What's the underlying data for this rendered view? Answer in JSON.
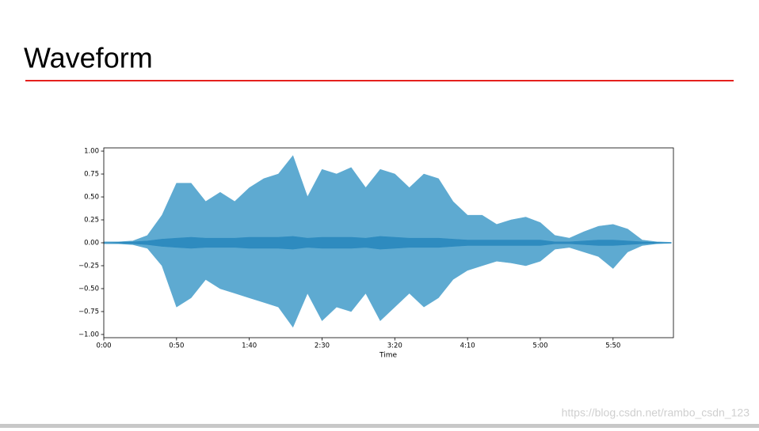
{
  "header": {
    "title": "Waveform"
  },
  "watermark": "https://blog.csdn.net/rambo_csdn_123",
  "chart_data": {
    "type": "area",
    "x_label": "Time",
    "x": [
      0,
      10,
      20,
      30,
      40,
      50,
      60,
      70,
      80,
      90,
      100,
      110,
      120,
      130,
      140,
      150,
      160,
      170,
      180,
      190,
      200,
      210,
      220,
      230,
      240,
      250,
      260,
      270,
      280,
      290,
      300,
      310,
      320,
      330,
      340,
      350,
      360,
      370,
      380,
      390
    ],
    "series": [
      {
        "color": "#5eaad1",
        "values": [
          0.01,
          0.01,
          0.02,
          0.08,
          0.3,
          0.65,
          0.65,
          0.45,
          0.55,
          0.45,
          0.6,
          0.7,
          0.75,
          0.95,
          0.5,
          0.8,
          0.75,
          0.82,
          0.6,
          0.8,
          0.75,
          0.6,
          0.75,
          0.7,
          0.45,
          0.3,
          0.3,
          0.2,
          0.25,
          0.28,
          0.22,
          0.08,
          0.05,
          0.12,
          0.18,
          0.2,
          0.15,
          0.03,
          0.01,
          0.005
        ]
      },
      {
        "color": "#5eaad1",
        "values": [
          -0.01,
          -0.01,
          -0.02,
          -0.06,
          -0.25,
          -0.7,
          -0.6,
          -0.4,
          -0.5,
          -0.55,
          -0.6,
          -0.65,
          -0.7,
          -0.92,
          -0.55,
          -0.85,
          -0.7,
          -0.75,
          -0.55,
          -0.85,
          -0.7,
          -0.55,
          -0.7,
          -0.6,
          -0.4,
          -0.3,
          -0.25,
          -0.2,
          -0.22,
          -0.25,
          -0.2,
          -0.07,
          -0.05,
          -0.1,
          -0.15,
          -0.28,
          -0.1,
          -0.03,
          -0.01,
          -0.005
        ]
      },
      {
        "color": "#2e8bbf",
        "values": [
          0,
          0.005,
          0.01,
          0.02,
          0.04,
          0.05,
          0.06,
          0.05,
          0.05,
          0.05,
          0.06,
          0.06,
          0.06,
          0.07,
          0.05,
          0.06,
          0.06,
          0.06,
          0.05,
          0.07,
          0.06,
          0.05,
          0.05,
          0.05,
          0.04,
          0.03,
          0.03,
          0.03,
          0.03,
          0.03,
          0.03,
          0.01,
          0.01,
          0.02,
          0.03,
          0.03,
          0.02,
          0.01,
          0.005,
          0
        ]
      },
      {
        "color": "#2e8bbf",
        "values": [
          0,
          -0.005,
          -0.01,
          -0.02,
          -0.04,
          -0.05,
          -0.06,
          -0.05,
          -0.05,
          -0.05,
          -0.06,
          -0.06,
          -0.06,
          -0.07,
          -0.05,
          -0.06,
          -0.06,
          -0.06,
          -0.05,
          -0.07,
          -0.06,
          -0.05,
          -0.05,
          -0.05,
          -0.04,
          -0.03,
          -0.03,
          -0.03,
          -0.03,
          -0.03,
          -0.03,
          -0.01,
          -0.01,
          -0.02,
          -0.03,
          -0.03,
          -0.02,
          -0.01,
          -0.005,
          0
        ]
      }
    ],
    "xlim": [
      0,
      391.5
    ],
    "xticks": [
      {
        "value": 0,
        "label": "0:00"
      },
      {
        "value": 50,
        "label": "0:50"
      },
      {
        "value": 100,
        "label": "1:40"
      },
      {
        "value": 150,
        "label": "2:30"
      },
      {
        "value": 200,
        "label": "3:20"
      },
      {
        "value": 250,
        "label": "4:10"
      },
      {
        "value": 300,
        "label": "5:00"
      },
      {
        "value": 350,
        "label": "5:50"
      }
    ],
    "ylim": [
      -1.035,
      1.035
    ],
    "yticks": [
      {
        "value": 1,
        "label": "1.00"
      },
      {
        "value": 0.75,
        "label": "0.75"
      },
      {
        "value": 0.5,
        "label": "0.50"
      },
      {
        "value": 0.25,
        "label": "0.25"
      },
      {
        "value": 0,
        "label": "0.00"
      },
      {
        "value": -0.25,
        "label": "−0.25"
      },
      {
        "value": -0.5,
        "label": "−0.50"
      },
      {
        "value": -0.75,
        "label": "−0.75"
      },
      {
        "value": -1,
        "label": "−1.00"
      }
    ]
  }
}
